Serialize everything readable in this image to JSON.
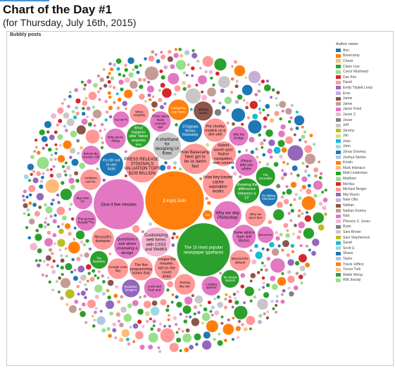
{
  "header": {
    "title": "Chart of the Day #1",
    "subtitle": "(for Thursday, July 16th, 2015)",
    "accent_color": "#4a90d9"
  },
  "chart_data": {
    "type": "bubble",
    "title": "Bubbly posts",
    "legend_title": "Author name",
    "legend_position": "right",
    "authors": [
      {
        "name": "Ann",
        "color": "#1f77b4"
      },
      {
        "name": "Basecamp",
        "color": "#ff7f0e"
      },
      {
        "name": "Chase",
        "color": "#ffbb78"
      },
      {
        "name": "Claire Lew",
        "color": "#2ca02c"
      },
      {
        "name": "Conor Muirhead",
        "color": "#98df8a"
      },
      {
        "name": "Dan Kim",
        "color": "#d62728"
      },
      {
        "name": "David",
        "color": "#ff9896"
      },
      {
        "name": "Emily Triplett Lentz",
        "color": "#9467bd"
      },
      {
        "name": "Eron",
        "color": "#c5b0d5"
      },
      {
        "name": "Jamie",
        "color": "#8c564b"
      },
      {
        "name": "Jamie",
        "color": "#c49c94"
      },
      {
        "name": "Jason Fried",
        "color": "#e377c2"
      },
      {
        "name": "Jason Z.",
        "color": "#f7b6d2"
      },
      {
        "name": "Javan",
        "color": "#7f7f7f"
      },
      {
        "name": "Jeff",
        "color": "#c7c7c7"
      },
      {
        "name": "Jeremy",
        "color": "#bcbd22"
      },
      {
        "name": "Jim",
        "color": "#dbdb8d"
      },
      {
        "name": "Joan",
        "color": "#17becf"
      },
      {
        "name": "John",
        "color": "#9edae5"
      },
      {
        "name": "Jonas Downey",
        "color": "#1f77b4"
      },
      {
        "name": "Joshua Sierles",
        "color": "#aec7e8"
      },
      {
        "name": "Kristin",
        "color": "#ff7f0e"
      },
      {
        "name": "Mark Imbriaco",
        "color": "#ffbb78"
      },
      {
        "name": "Matt Linderman",
        "color": "#2ca02c"
      },
      {
        "name": "Matthew",
        "color": "#98df8a"
      },
      {
        "name": "Merlisa",
        "color": "#d62728"
      },
      {
        "name": "Michael Berger",
        "color": "#ff9896"
      },
      {
        "name": "Mig Reyes",
        "color": "#9467bd"
      },
      {
        "name": "Nate Otto",
        "color": "#c5b0d5"
      },
      {
        "name": "Nathan",
        "color": "#8c564b"
      },
      {
        "name": "Nathan Kontny",
        "color": "#c49c94"
      },
      {
        "name": "Nick",
        "color": "#e377c2"
      },
      {
        "name": "Pheonix X. Jones",
        "color": "#f7b6d2"
      },
      {
        "name": "Ryan",
        "color": "#7f7f7f"
      },
      {
        "name": "Sam Brown",
        "color": "#c7c7c7"
      },
      {
        "name": "Sam Stephenson",
        "color": "#bcbd22"
      },
      {
        "name": "Sarah",
        "color": "#17becf"
      },
      {
        "name": "Scott U.",
        "color": "#9edae5"
      },
      {
        "name": "Shaun",
        "color": "#1f77b4"
      },
      {
        "name": "Taylor",
        "color": "#aec7e8"
      },
      {
        "name": "Travis Jeffery",
        "color": "#ff7f0e"
      },
      {
        "name": "Trevor Turk",
        "color": "#ffbb78"
      },
      {
        "name": "Wailin Wong",
        "color": "#2ca02c"
      },
      {
        "name": "Will Jessop",
        "color": "#98df8a"
      }
    ],
    "bubbles": [
      {
        "label": "[Lingo] Judo",
        "author": "Basecamp",
        "r": 42
      },
      {
        "label": "The 10 most popular newspaper typefaces",
        "author": "Matt Linderman",
        "r": 38
      },
      {
        "label": "Give it five minutes",
        "author": "Jason Fried",
        "r": 36
      },
      {
        "label": "A shorthand for designing UI flows",
        "author": "Jeff",
        "r": 20
      },
      {
        "label": "Why we skip Photoshop",
        "author": "Jason Fried",
        "r": 20
      },
      {
        "label": "How Basecamp Next got to be so damn fast",
        "author": "David",
        "r": 22
      },
      {
        "label": "Customizing web forms with CSS3 and WebKit",
        "author": "Jason Z.",
        "r": 21
      },
      {
        "label": "PRESS RELEASE: 37SIGNALS VALUATION TOPS $100 BILLION",
        "author": "David",
        "r": 24
      },
      {
        "label": "How key-based cache expiration works",
        "author": "David",
        "r": 22
      },
      {
        "label": "Questions I ask when reviewing a design",
        "author": "Jason Fried",
        "r": 19
      },
      {
        "label": "37signals Works Remotely",
        "author": "Jonas Downey",
        "r": 17
      },
      {
        "label": "It's OK not to use tools",
        "author": "Jonas Downey",
        "r": 17
      },
      {
        "label": "What happens after Yahoo acquires you",
        "author": "Matt Linderman",
        "r": 17
      },
      {
        "label": "Three quick Rails console tips",
        "author": "Jason Fried",
        "r": 15
      },
      {
        "label": "Hybrid sweet spot: Native navigation, web content",
        "author": "David",
        "r": 18
      },
      {
        "label": "Forget the resume, kill on the cover letter",
        "author": "David",
        "r": 18
      },
      {
        "label": "Microsoft's dystopian",
        "author": "David",
        "r": 16
      },
      {
        "label": "The five programming books that",
        "author": "David",
        "r": 17
      },
      {
        "label": "Showing the difference between a 13\"",
        "author": "Matt Linderman",
        "r": 18
      },
      {
        "label": "Some advice from Jeff Bezos",
        "author": "Jason Fried",
        "r": 17
      },
      {
        "label": "Put chubby models on a diet with",
        "author": "David",
        "r": 17
      },
      {
        "label": "iPhone tells you where",
        "author": "Jason Fried",
        "r": 16
      },
      {
        "label": "Why we don't hire",
        "author": "David",
        "r": 15
      },
      {
        "label": "Why we're doing",
        "author": "Jason Fried",
        "r": 15
      },
      {
        "label": "Testing like the",
        "author": "David",
        "r": 15
      },
      {
        "label": "Ambition can be",
        "author": "David",
        "r": 15
      },
      {
        "label": "Google uses Big",
        "author": "David",
        "r": 15
      },
      {
        "label": "Beyond the default",
        "author": "David",
        "r": 15
      },
      {
        "label": "Why the Drudge",
        "author": "Jason Fried",
        "r": 14
      },
      {
        "label": "Look and Feel and",
        "author": "Jason Fried",
        "r": 15
      },
      {
        "label": "Loading spinner",
        "author": "Jason Fried",
        "r": 14
      },
      {
        "label": "Big news for",
        "author": "Jason Fried",
        "r": 14
      },
      {
        "label": "When empathy",
        "author": "David",
        "r": 14
      },
      {
        "label": "Making sense",
        "author": "Jamie",
        "r": 14
      },
      {
        "label": "The person theyâ€™re",
        "author": "Jason Fried",
        "r": 15
      },
      {
        "label": "Behind the scenes: A/B",
        "author": "Jason Fried",
        "r": 14
      },
      {
        "label": "Designing App Store",
        "author": "Basecamp",
        "r": 15
      },
      {
        "label": "Two â€™s",
        "author": "Jason Fried",
        "r": 12
      },
      {
        "label": "On Writing Interfaces",
        "author": "Jonas Downey",
        "r": 13
      },
      {
        "label": "Ten design lessons",
        "author": "Matt Linderman",
        "r": 13
      },
      {
        "label": "The Incredible",
        "author": "Matt Linderman",
        "r": 14
      },
      {
        "label": "The backstory",
        "author": "Matt Linderman",
        "r": 13
      },
      {
        "label": "Reminder: Design is",
        "author": "Mig Reyes",
        "r": 13
      },
      {
        "label": "Behind the",
        "author": "Jason Fried",
        "r": 12
      },
      {
        "label": "Title",
        "author": "Basecamp",
        "r": 7
      }
    ]
  }
}
